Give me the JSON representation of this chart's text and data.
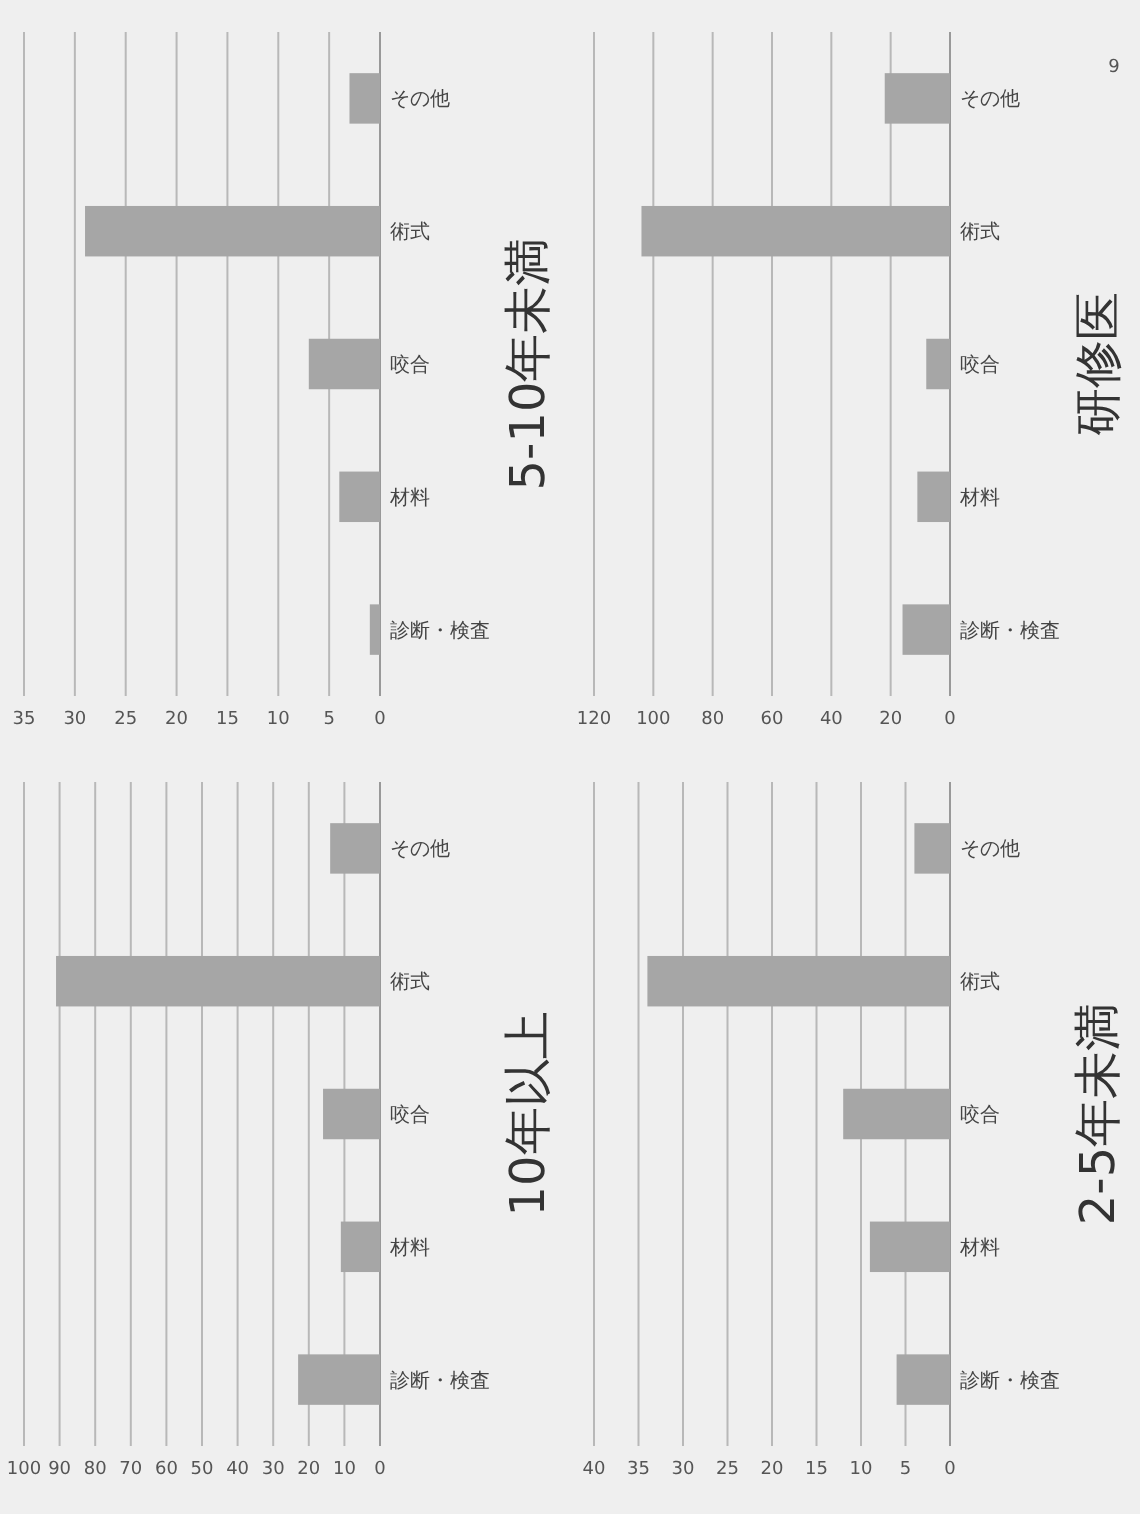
{
  "chart_data": [
    {
      "type": "bar",
      "orientation": "horizontal",
      "title": "10年以上",
      "categories": [
        "その他",
        "術式",
        "咬合",
        "材料",
        "診断・検査"
      ],
      "values": [
        14,
        91,
        16,
        11,
        23
      ],
      "color": "#a6a6a6",
      "xlim": [
        100,
        0
      ],
      "xticks": [
        100,
        90,
        80,
        70,
        60,
        50,
        40,
        30,
        20,
        10,
        0
      ],
      "grid": "x"
    },
    {
      "type": "bar",
      "orientation": "horizontal",
      "title": "5-10年未満",
      "categories": [
        "その他",
        "術式",
        "咬合",
        "材料",
        "診断・検査"
      ],
      "values": [
        3,
        29,
        7,
        4,
        1
      ],
      "color": "#a6a6a6",
      "xlim": [
        35,
        0
      ],
      "xticks": [
        35,
        30,
        25,
        20,
        15,
        10,
        5,
        0
      ],
      "grid": "x"
    },
    {
      "type": "bar",
      "orientation": "horizontal",
      "title": "2-5年未満",
      "categories": [
        "その他",
        "術式",
        "咬合",
        "材料",
        "診断・検査"
      ],
      "values": [
        4,
        34,
        12,
        9,
        6
      ],
      "color": "#a6a6a6",
      "xlim": [
        40,
        0
      ],
      "xticks": [
        40,
        35,
        30,
        25,
        20,
        15,
        10,
        5,
        0
      ],
      "grid": "x"
    },
    {
      "type": "bar",
      "orientation": "horizontal",
      "title": "研修医",
      "categories": [
        "その他",
        "術式",
        "咬合",
        "材料",
        "診断・検査"
      ],
      "values": [
        22,
        104,
        8,
        11,
        16
      ],
      "color": "#a6a6a6",
      "xlim": [
        120,
        0
      ],
      "xticks": [
        120,
        100,
        80,
        60,
        40,
        20,
        0
      ],
      "grid": "x",
      "annotations": [
        "9"
      ]
    }
  ]
}
